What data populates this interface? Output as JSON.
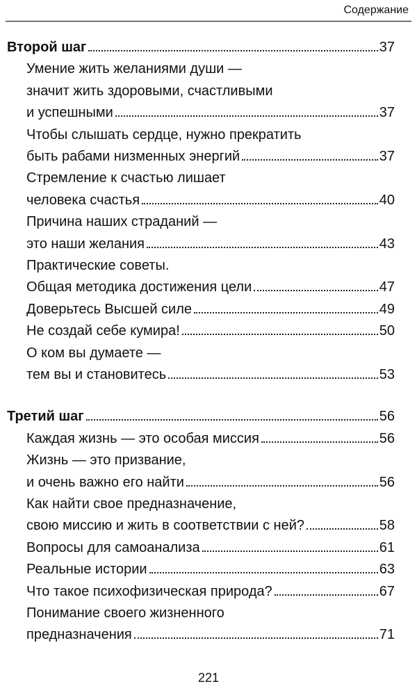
{
  "header": {
    "title": "Содержание"
  },
  "sections": [
    {
      "title": "Второй шаг",
      "page": 37,
      "entries": [
        {
          "lines": [
            "Умение жить желаниями души —",
            "значит жить здоровыми, счастливыми",
            "и успешными"
          ],
          "page": 37
        },
        {
          "lines": [
            "Чтобы слышать сердце, нужно прекратить",
            "быть рабами низменных энергий"
          ],
          "page": 37
        },
        {
          "lines": [
            "Стремление к счастью лишает",
            "человека счастья"
          ],
          "page": 40
        },
        {
          "lines": [
            "Причина наших страданий —",
            "это наши желания"
          ],
          "page": 43
        },
        {
          "lines": [
            "Практические советы.",
            "Общая методика достижения цели"
          ],
          "page": 47
        },
        {
          "lines": [
            "Доверьтесь Высшей силе"
          ],
          "page": 49
        },
        {
          "lines": [
            "Не создай себе кумира!"
          ],
          "page": 50
        },
        {
          "lines": [
            "О ком вы думаете —",
            "тем вы и становитесь"
          ],
          "page": 53
        }
      ]
    },
    {
      "title": "Третий шаг",
      "page": 56,
      "entries": [
        {
          "lines": [
            "Каждая жизнь — это особая миссия"
          ],
          "page": 56
        },
        {
          "lines": [
            "Жизнь — это призвание,",
            "и очень важно его найти"
          ],
          "page": 56
        },
        {
          "lines": [
            "Как найти свое предназначение,",
            "свою миссию и жить в соответствии с ней?"
          ],
          "page": 58
        },
        {
          "lines": [
            "Вопросы для самоанализа"
          ],
          "page": 61
        },
        {
          "lines": [
            "Реальные истории"
          ],
          "page": 63
        },
        {
          "lines": [
            "Что такое психофизическая природа?"
          ],
          "page": 67
        },
        {
          "lines": [
            "Понимание своего жизненного",
            "предназначения"
          ],
          "page": 71
        }
      ]
    }
  ],
  "footer": {
    "page_number": 221
  }
}
